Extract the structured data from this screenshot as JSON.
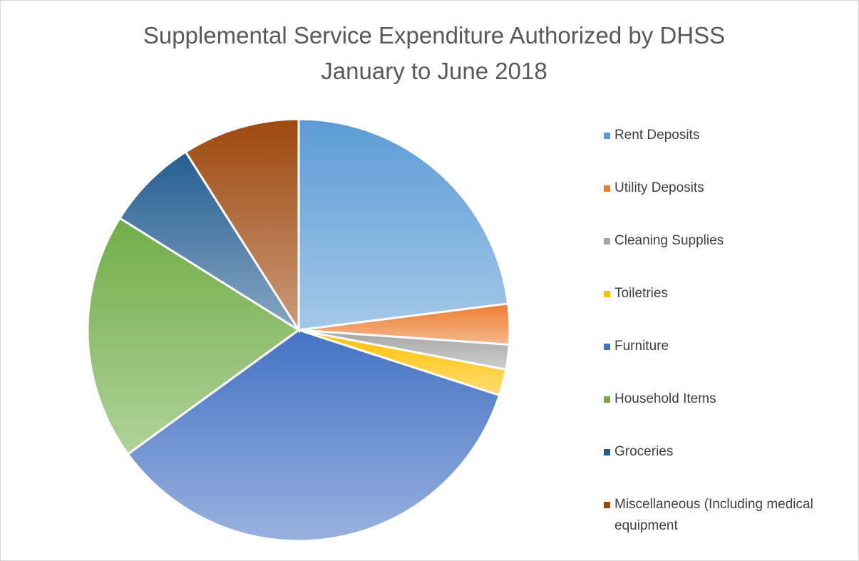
{
  "chart_data": {
    "type": "pie",
    "title": "Supplemental Service Expenditure Authorized by DHSS",
    "subtitle": "January to June 2018",
    "categories": [
      "Rent Deposits",
      "Utility Deposits",
      "Cleaning Supplies",
      "Toiletries",
      "Furniture",
      "Household Items",
      "Groceries",
      "Miscellaneous (Including medical equipment"
    ],
    "values": [
      23,
      3.1,
      1.9,
      2,
      35,
      18.9,
      7.1,
      9
    ],
    "colors": [
      "#5b9bd5",
      "#ed7d31",
      "#a5a5a5",
      "#ffc000",
      "#4472c4",
      "#70ad47",
      "#255e91",
      "#9e480e"
    ],
    "legend": "right"
  }
}
